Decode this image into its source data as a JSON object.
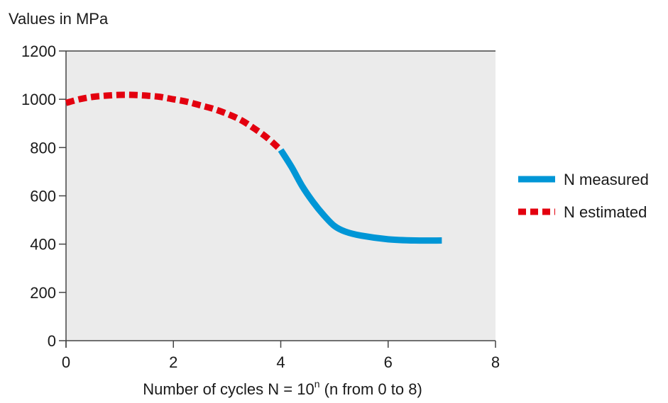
{
  "chart_data": {
    "type": "line",
    "ylabel": "Values in MPa",
    "xlabel_main": "Number of cycles N = 10",
    "xlabel_sup": "n",
    "xlabel_tail": " (n from 0 to 8)",
    "xlim": [
      0,
      8
    ],
    "ylim": [
      0,
      1200
    ],
    "x_ticks": [
      0,
      2,
      4,
      6,
      8
    ],
    "y_ticks": [
      0,
      200,
      400,
      600,
      800,
      1000,
      1200
    ],
    "grid": false,
    "legend_position": "right",
    "series": [
      {
        "name": "N measured",
        "style": "solid",
        "color": "#0096d6",
        "points": [
          [
            4.0,
            790
          ],
          [
            4.2,
            720
          ],
          [
            4.4,
            640
          ],
          [
            4.6,
            575
          ],
          [
            4.8,
            520
          ],
          [
            5.0,
            475
          ],
          [
            5.2,
            452
          ],
          [
            5.5,
            435
          ],
          [
            6.0,
            420
          ],
          [
            6.5,
            415
          ],
          [
            7.0,
            415
          ]
        ]
      },
      {
        "name": "N estimated",
        "style": "dashed",
        "color": "#e3000f",
        "points": [
          [
            0.0,
            985
          ],
          [
            0.25,
            1000
          ],
          [
            0.5,
            1010
          ],
          [
            0.75,
            1015
          ],
          [
            1.0,
            1018
          ],
          [
            1.25,
            1018
          ],
          [
            1.5,
            1015
          ],
          [
            1.75,
            1010
          ],
          [
            2.0,
            1000
          ],
          [
            2.25,
            990
          ],
          [
            2.5,
            975
          ],
          [
            2.75,
            960
          ],
          [
            3.0,
            940
          ],
          [
            3.25,
            915
          ],
          [
            3.5,
            880
          ],
          [
            3.75,
            840
          ],
          [
            4.0,
            790
          ]
        ]
      }
    ]
  }
}
